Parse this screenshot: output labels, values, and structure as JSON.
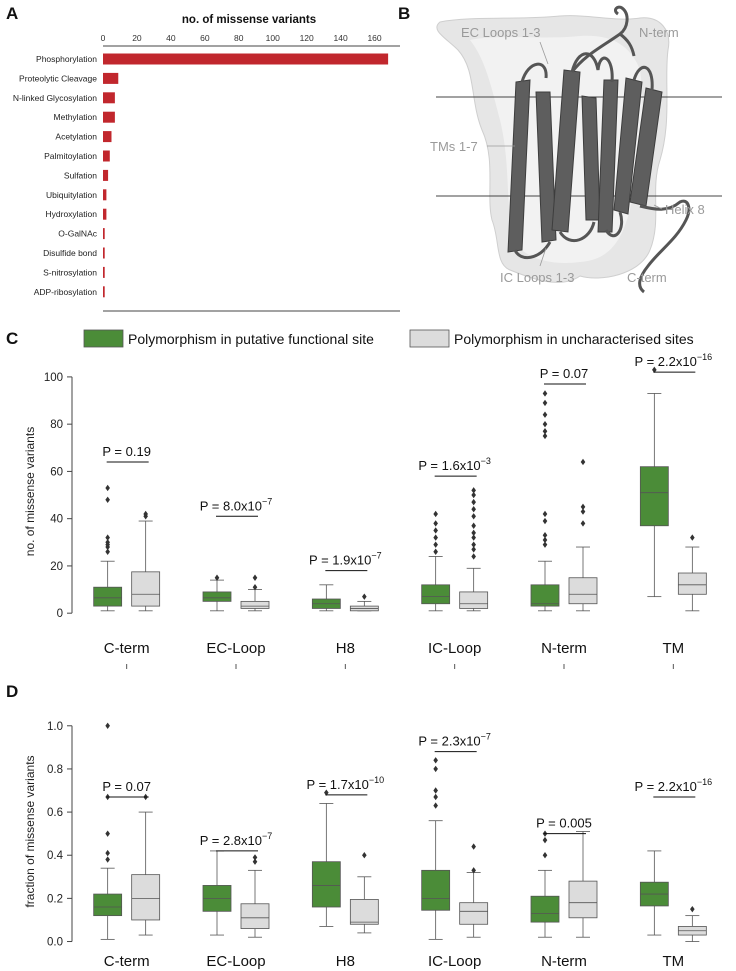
{
  "colors": {
    "bar": "#c1272d",
    "functional": "#4b8c38",
    "uncharacterised": "#dcdcdc",
    "box_edge": "#555555",
    "protein": "#5a5a5a",
    "surface": "#e4e4e4",
    "annotation": "#9a9a9a"
  },
  "chart_data": [
    {
      "panel": "A",
      "type": "bar",
      "orientation": "horizontal",
      "title": "no. of missense variants",
      "xlim": [
        0,
        175
      ],
      "xticks": [
        0,
        20,
        40,
        60,
        80,
        100,
        120,
        140,
        160
      ],
      "xtick_labels": [
        "0",
        "20",
        "40",
        "60",
        "80",
        "100",
        "120",
        "140",
        "160"
      ],
      "categories": [
        "Phosphorylation",
        "Proteolytic Cleavage",
        "N-linked Glycosylation",
        "Methylation",
        "Acetylation",
        "Palmitoylation",
        "Sulfation",
        "Ubiquitylation",
        "Hydroxylation",
        "O-GalNAc",
        "Disulfide bond",
        "S-nitrosylation",
        "ADP-ribosylation"
      ],
      "values": [
        168,
        9,
        7,
        7,
        5,
        4,
        3,
        2,
        2,
        1,
        1,
        1,
        1
      ]
    },
    {
      "panel": "C",
      "type": "box",
      "ylabel": "no. of missense variants",
      "ylim": [
        -5,
        108
      ],
      "yticks": [
        0,
        20,
        40,
        60,
        80,
        100
      ],
      "ytick_labels": [
        "0",
        "20",
        "40",
        "60",
        "80",
        "100"
      ],
      "legend": [
        "Polymorphism in putative functional site",
        "Polymorphism in uncharacterised sites"
      ],
      "categories": [
        "C-term",
        "EC-Loop",
        "H8",
        "IC-Loop",
        "N-term",
        "TM"
      ],
      "p_values": [
        {
          "base": "P = 0.19",
          "exp": ""
        },
        {
          "base": "P = 8.0x10",
          "exp": "−7"
        },
        {
          "base": "P = 1.9x10",
          "exp": "−7"
        },
        {
          "base": "P = 1.6x10",
          "exp": "−3"
        },
        {
          "base": "P = 0.07",
          "exp": ""
        },
        {
          "base": "P = 2.2x10",
          "exp": "−16"
        }
      ],
      "p_bar_y": [
        64,
        41,
        18,
        58,
        97,
        102
      ],
      "series": [
        {
          "name": "Polymorphism in putative functional site",
          "boxes": [
            {
              "wlo": 1,
              "q1": 3,
              "med": 6.5,
              "q3": 11,
              "whi": 22,
              "fliers": [
                26,
                28,
                29,
                30,
                32,
                48,
                53
              ]
            },
            {
              "wlo": 1,
              "q1": 5,
              "med": 6.5,
              "q3": 9,
              "whi": 14,
              "fliers": [
                15
              ]
            },
            {
              "wlo": 1,
              "q1": 2,
              "med": 4,
              "q3": 6,
              "whi": 12,
              "fliers": []
            },
            {
              "wlo": 1,
              "q1": 4,
              "med": 7,
              "q3": 12,
              "whi": 24,
              "fliers": [
                26,
                29,
                32,
                35,
                38,
                42
              ]
            },
            {
              "wlo": 1,
              "q1": 3,
              "med": 4,
              "q3": 12,
              "whi": 22,
              "fliers": [
                29,
                31,
                33,
                39,
                42,
                75,
                77,
                80,
                84,
                89,
                93
              ]
            },
            {
              "wlo": 7,
              "q1": 37,
              "med": 51,
              "q3": 62,
              "whi": 93,
              "fliers": [
                103
              ]
            }
          ]
        },
        {
          "name": "Polymorphism in uncharacterised sites",
          "boxes": [
            {
              "wlo": 1,
              "q1": 3,
              "med": 8,
              "q3": 17.5,
              "whi": 39,
              "fliers": [
                41,
                42
              ]
            },
            {
              "wlo": 1,
              "q1": 2,
              "med": 3,
              "q3": 5,
              "whi": 10,
              "fliers": [
                11,
                15
              ]
            },
            {
              "wlo": 1,
              "q1": 1,
              "med": 2,
              "q3": 3,
              "whi": 5,
              "fliers": [
                7
              ]
            },
            {
              "wlo": 1,
              "q1": 2,
              "med": 4,
              "q3": 9,
              "whi": 19,
              "fliers": [
                24,
                27,
                29,
                32,
                34,
                37,
                41,
                44,
                47,
                50,
                52
              ]
            },
            {
              "wlo": 1,
              "q1": 4,
              "med": 8,
              "q3": 15,
              "whi": 28,
              "fliers": [
                38,
                43,
                45,
                64
              ]
            },
            {
              "wlo": 1,
              "q1": 8,
              "med": 12,
              "q3": 17,
              "whi": 28,
              "fliers": [
                32
              ]
            }
          ]
        }
      ]
    },
    {
      "panel": "D",
      "type": "box",
      "ylabel": "fraction of missense variants",
      "ylim": [
        -0.03,
        1.05
      ],
      "yticks": [
        0.0,
        0.2,
        0.4,
        0.6,
        0.8,
        1.0
      ],
      "ytick_labels": [
        "0.0",
        "0.2",
        "0.4",
        "0.6",
        "0.8",
        "1.0"
      ],
      "categories": [
        "C-term",
        "EC-Loop",
        "H8",
        "IC-Loop",
        "N-term",
        "TM"
      ],
      "p_values": [
        {
          "base": "P = 0.07",
          "exp": ""
        },
        {
          "base": "P = 2.8x10",
          "exp": "−7"
        },
        {
          "base": "P = 1.7x10",
          "exp": "−10"
        },
        {
          "base": "P = 2.3x10",
          "exp": "−7"
        },
        {
          "base": "P = 0.005",
          "exp": ""
        },
        {
          "base": "P = 2.2x10",
          "exp": "−16"
        }
      ],
      "p_bar_y": [
        0.67,
        0.42,
        0.68,
        0.88,
        0.5,
        0.67
      ],
      "series": [
        {
          "name": "Polymorphism in putative functional site",
          "boxes": [
            {
              "wlo": 0.01,
              "q1": 0.12,
              "med": 0.16,
              "q3": 0.22,
              "whi": 0.34,
              "fliers": [
                0.38,
                0.41,
                0.5,
                0.67,
                1.0
              ]
            },
            {
              "wlo": 0.03,
              "q1": 0.14,
              "med": 0.2,
              "q3": 0.26,
              "whi": 0.42,
              "fliers": []
            },
            {
              "wlo": 0.07,
              "q1": 0.16,
              "med": 0.26,
              "q3": 0.37,
              "whi": 0.64,
              "fliers": [
                0.69
              ]
            },
            {
              "wlo": 0.01,
              "q1": 0.145,
              "med": 0.2,
              "q3": 0.33,
              "whi": 0.56,
              "fliers": [
                0.63,
                0.67,
                0.7,
                0.8,
                0.84
              ]
            },
            {
              "wlo": 0.02,
              "q1": 0.09,
              "med": 0.13,
              "q3": 0.21,
              "whi": 0.33,
              "fliers": [
                0.4,
                0.47,
                0.5
              ]
            },
            {
              "wlo": 0.03,
              "q1": 0.165,
              "med": 0.22,
              "q3": 0.275,
              "whi": 0.42,
              "fliers": []
            }
          ]
        },
        {
          "name": "Polymorphism in uncharacterised sites",
          "boxes": [
            {
              "wlo": 0.03,
              "q1": 0.1,
              "med": 0.2,
              "q3": 0.31,
              "whi": 0.6,
              "fliers": [
                0.67
              ]
            },
            {
              "wlo": 0.02,
              "q1": 0.06,
              "med": 0.11,
              "q3": 0.175,
              "whi": 0.33,
              "fliers": [
                0.37,
                0.39
              ]
            },
            {
              "wlo": 0.04,
              "q1": 0.08,
              "med": 0.09,
              "q3": 0.195,
              "whi": 0.3,
              "fliers": [
                0.4
              ]
            },
            {
              "wlo": 0.02,
              "q1": 0.08,
              "med": 0.14,
              "q3": 0.18,
              "whi": 0.32,
              "fliers": [
                0.33,
                0.44
              ]
            },
            {
              "wlo": 0.02,
              "q1": 0.11,
              "med": 0.18,
              "q3": 0.28,
              "whi": 0.51,
              "fliers": []
            },
            {
              "wlo": 0.0,
              "q1": 0.03,
              "med": 0.05,
              "q3": 0.07,
              "whi": 0.12,
              "fliers": [
                0.15
              ]
            }
          ]
        }
      ]
    }
  ],
  "panel_labels": {
    "a": "A",
    "b": "B",
    "c": "C",
    "d": "D"
  },
  "structure": {
    "labels": {
      "ec_loops": "EC Loops 1-3",
      "n_term": "N-term",
      "tms": "TMs 1-7",
      "helix8": "Helix 8",
      "ic_loops": "IC Loops 1-3",
      "c_term": "C-term"
    }
  }
}
